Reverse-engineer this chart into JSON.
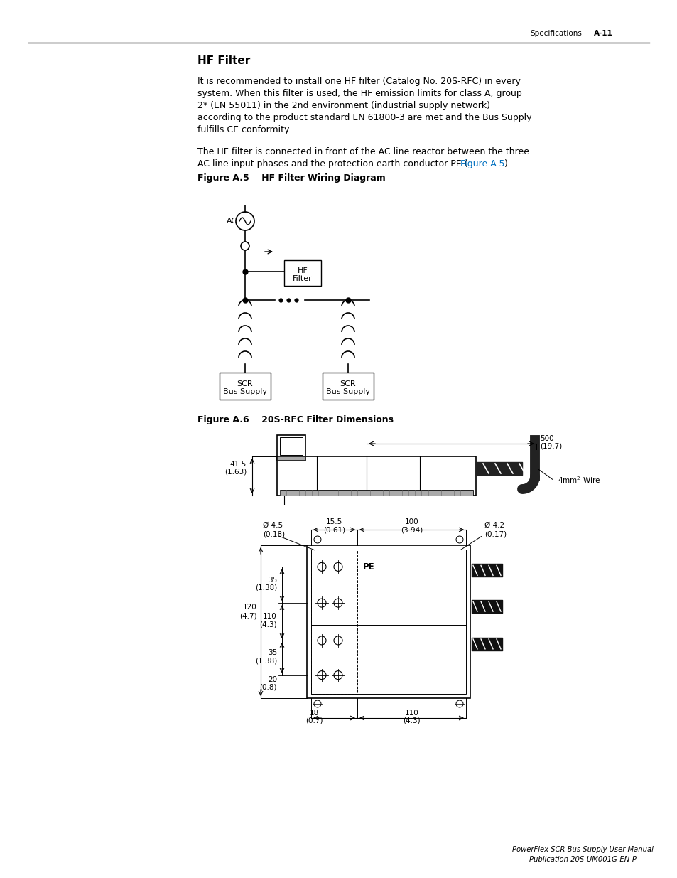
{
  "bg_color": "#ffffff",
  "text_color": "#000000",
  "link_color": "#0070c0",
  "header_text": "Specifications",
  "header_bold": "A-11",
  "section_title": "HF Filter",
  "para1_lines": [
    "It is recommended to install one HF filter (Catalog No. 20S-RFC) in every",
    "system. When this filter is used, the HF emission limits for class A, group",
    "2* (EN 55011) in the 2nd environment (industrial supply network)",
    "according to the product standard EN 61800-3 are met and the Bus Supply",
    "fulfills CE conformity."
  ],
  "para2_line1": "The HF filter is connected in front of the AC line reactor between the three",
  "para2_line2_pre": "AC line input phases and the protection earth conductor PE (",
  "para2_line2_link": "Figure A.5",
  "para2_line2_post": ").",
  "fig5_label": "Figure A.5",
  "fig5_title": "    HF Filter Wiring Diagram",
  "fig6_label": "Figure A.6",
  "fig6_title": "    20S-RFC Filter Dimensions",
  "footer1": "PowerFlex SCR Bus Supply User Manual",
  "footer2": "Publication 20S-UM001G-EN-P"
}
